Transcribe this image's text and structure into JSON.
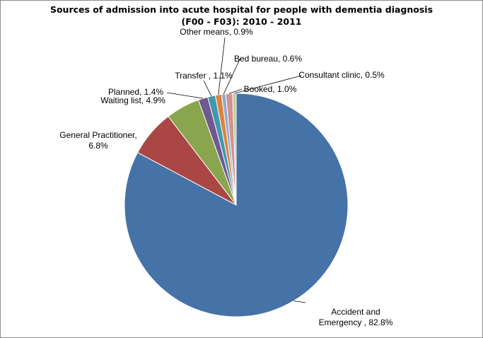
{
  "chart_data": {
    "type": "pie",
    "title_lines": [
      "Sources of admission into acute hospital for people with dementia diagnosis",
      "(F00 - F03): 2010 - 2011"
    ],
    "slices": [
      {
        "label_lines": [
          "Accident and",
          "Emergency , 82.8%"
        ],
        "value": 82.8,
        "color": "#4572A7"
      },
      {
        "label_lines": [
          "General Practitioner,",
          "6.8%"
        ],
        "value": 6.8,
        "color": "#AA4643"
      },
      {
        "label_lines": [
          "Waiting list, 4.9%"
        ],
        "value": 4.9,
        "color": "#89A54E"
      },
      {
        "label_lines": [
          "Planned, 1.4%"
        ],
        "value": 1.4,
        "color": "#71588F"
      },
      {
        "label_lines": [
          "Transfer , 1.1%"
        ],
        "value": 1.1,
        "color": "#4198AF"
      },
      {
        "label_lines": [
          "Other means, 0.9%"
        ],
        "value": 0.9,
        "color": "#DB843D"
      },
      {
        "label_lines": [
          "Bed bureau, 0.6%"
        ],
        "value": 0.6,
        "color": "#93A9CF"
      },
      {
        "label_lines": [
          "Booked, 1.0%"
        ],
        "value": 1.0,
        "color": "#D19392"
      },
      {
        "label_lines": [
          "Consultant clinic, 0.5%"
        ],
        "value": 0.5,
        "color": "#B9CD96"
      }
    ],
    "legend": "none"
  }
}
